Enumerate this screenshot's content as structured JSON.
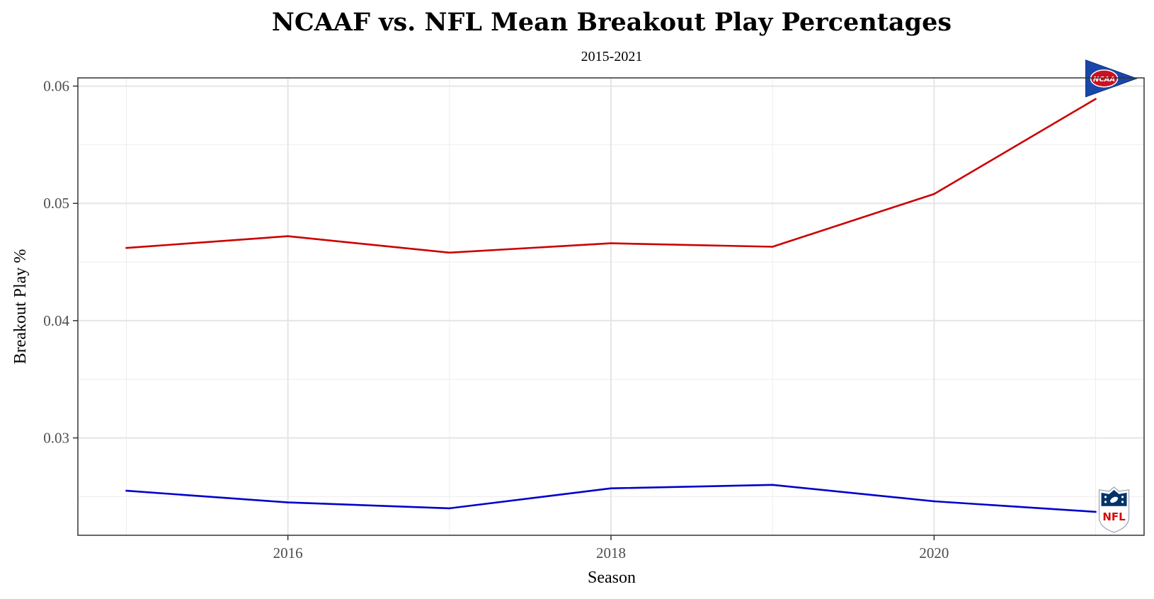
{
  "chart_data": {
    "type": "line",
    "title": "NCAAF vs. NFL Mean Breakout Play Percentages",
    "subtitle": "2015-2021",
    "xlabel": "Season",
    "ylabel": "Breakout Play %",
    "x": [
      2015,
      2016,
      2017,
      2018,
      2019,
      2020,
      2021
    ],
    "xlim": [
      2014.7,
      2021.3
    ],
    "ylim": [
      0.0217,
      0.0607
    ],
    "x_ticks": [
      2016,
      2018,
      2020
    ],
    "x_tick_labels": [
      "2016",
      "2018",
      "2020"
    ],
    "y_ticks": [
      0.03,
      0.04,
      0.05,
      0.06
    ],
    "y_tick_labels": [
      "0.03",
      "0.04",
      "0.05",
      "0.06"
    ],
    "grid": true,
    "series": [
      {
        "name": "NCAA",
        "color": "#cc0000",
        "logo": "ncaa-logo",
        "values": [
          0.0462,
          0.0472,
          0.0458,
          0.0466,
          0.0463,
          0.0508,
          0.0589
        ]
      },
      {
        "name": "NFL",
        "color": "#0000cc",
        "logo": "nfl-logo",
        "values": [
          0.0255,
          0.0245,
          0.024,
          0.0257,
          0.026,
          0.0246,
          0.0237
        ]
      }
    ]
  }
}
